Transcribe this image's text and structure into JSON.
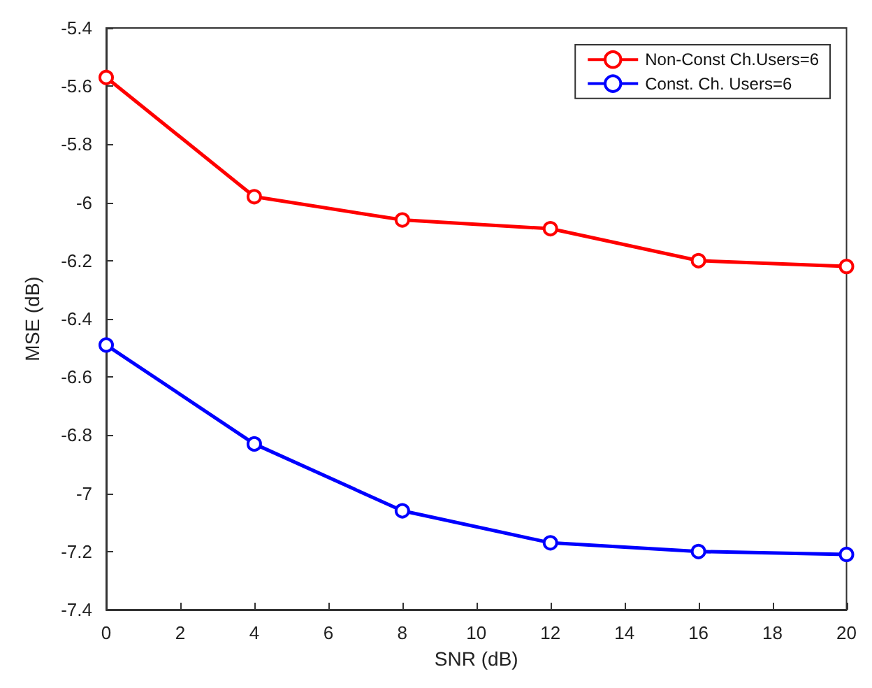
{
  "chart_data": {
    "type": "line",
    "xlabel": "SNR (dB)",
    "ylabel": "MSE (dB)",
    "x": [
      0,
      4,
      8,
      12,
      16,
      20
    ],
    "series": [
      {
        "name": "Non-Const Ch.Users=6",
        "color": "#ff0000",
        "values": [
          -5.57,
          -5.98,
          -6.06,
          -6.09,
          -6.2,
          -6.22
        ]
      },
      {
        "name": "Const. Ch. Users=6",
        "color": "#0000ff",
        "values": [
          -6.49,
          -6.83,
          -7.06,
          -7.17,
          -7.2,
          -7.21
        ]
      }
    ],
    "xlim": [
      0,
      20
    ],
    "xticks": [
      0,
      2,
      4,
      6,
      8,
      10,
      12,
      14,
      16,
      18,
      20
    ],
    "ylim": [
      -7.4,
      -5.4
    ],
    "yticks": [
      -7.4,
      -7.2,
      -7,
      -6.8,
      -6.6,
      -6.4,
      -6.2,
      -6,
      -5.8,
      -5.6,
      -5.4
    ],
    "grid": false,
    "legend": "top right",
    "marker": "circle",
    "line_style": "solid"
  }
}
